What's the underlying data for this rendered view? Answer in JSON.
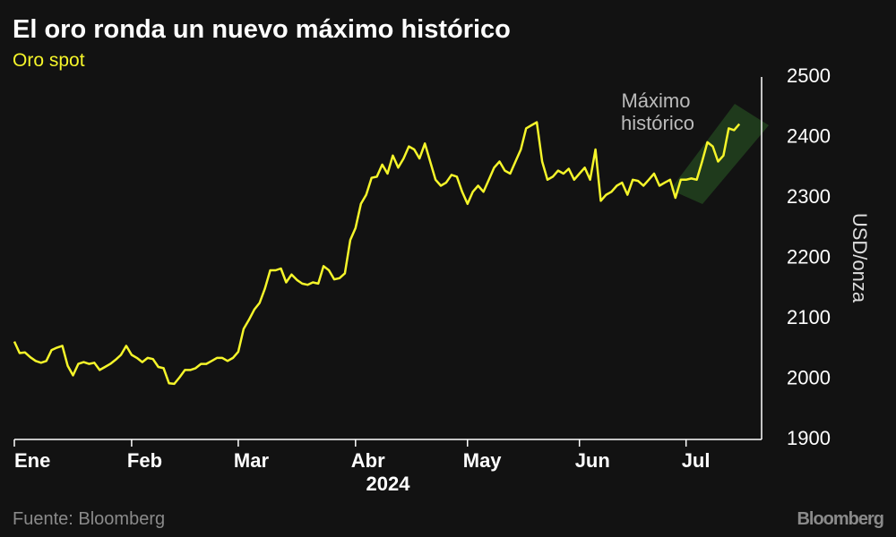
{
  "chart_data": {
    "type": "line",
    "title": "El oro ronda un nuevo máximo histórico",
    "subtitle": "Oro spot",
    "y_label": "USD/onza",
    "year_label": "2024",
    "annotation": [
      "Máximo",
      "histórico"
    ],
    "source": "Fuente: Bloomberg",
    "brand": "Bloomberg",
    "color": "#f5f52a",
    "ylim": [
      1900,
      2500
    ],
    "yticks": [
      1900,
      2000,
      2100,
      2200,
      2300,
      2400,
      2500
    ],
    "grid": false,
    "categories": [
      "Ene",
      null,
      null,
      null,
      null,
      null,
      null,
      null,
      null,
      null,
      null,
      null,
      null,
      null,
      null,
      null,
      null,
      null,
      null,
      null,
      null,
      null,
      "Feb",
      null,
      null,
      null,
      null,
      null,
      null,
      null,
      null,
      null,
      null,
      null,
      null,
      null,
      null,
      null,
      null,
      null,
      null,
      null,
      "Mar",
      null,
      null,
      null,
      null,
      null,
      null,
      null,
      null,
      null,
      null,
      null,
      null,
      null,
      null,
      null,
      null,
      null,
      null,
      null,
      null,
      null,
      "Abr",
      null,
      null,
      null,
      null,
      null,
      null,
      null,
      null,
      null,
      null,
      null,
      null,
      null,
      null,
      null,
      null,
      null,
      null,
      null,
      null,
      "May",
      null,
      null,
      null,
      null,
      null,
      null,
      null,
      null,
      null,
      null,
      null,
      null,
      null,
      null,
      null,
      null,
      null,
      null,
      null,
      null,
      "Jun",
      null,
      null,
      null,
      null,
      null,
      null,
      null,
      null,
      null,
      null,
      null,
      null,
      null,
      null,
      null,
      null,
      null,
      null,
      null,
      "Jul",
      null,
      null,
      null,
      null,
      null,
      null,
      null,
      null,
      null,
      null
    ],
    "values": [
      2062,
      2043,
      2044,
      2036,
      2030,
      2027,
      2030,
      2048,
      2052,
      2055,
      2022,
      2006,
      2025,
      2028,
      2025,
      2027,
      2015,
      2020,
      2025,
      2032,
      2040,
      2055,
      2040,
      2035,
      2028,
      2035,
      2033,
      2020,
      2018,
      1993,
      1992,
      2003,
      2015,
      2015,
      2018,
      2025,
      2025,
      2030,
      2035,
      2035,
      2030,
      2035,
      2045,
      2083,
      2098,
      2115,
      2126,
      2150,
      2180,
      2180,
      2183,
      2160,
      2173,
      2164,
      2158,
      2156,
      2160,
      2158,
      2187,
      2180,
      2165,
      2167,
      2175,
      2230,
      2250,
      2290,
      2305,
      2333,
      2335,
      2355,
      2340,
      2370,
      2350,
      2365,
      2385,
      2380,
      2365,
      2390,
      2360,
      2330,
      2320,
      2325,
      2338,
      2335,
      2310,
      2290,
      2310,
      2320,
      2310,
      2330,
      2350,
      2360,
      2345,
      2340,
      2360,
      2380,
      2415,
      2420,
      2425,
      2360,
      2330,
      2335,
      2345,
      2340,
      2348,
      2330,
      2340,
      2350,
      2330,
      2380,
      2295,
      2305,
      2310,
      2320,
      2325,
      2305,
      2330,
      2328,
      2320,
      2330,
      2340,
      2320,
      2325,
      2330,
      2300,
      2330,
      2330,
      2332,
      2330,
      2360,
      2392,
      2385,
      2360,
      2370,
      2415,
      2412,
      2422
    ]
  }
}
